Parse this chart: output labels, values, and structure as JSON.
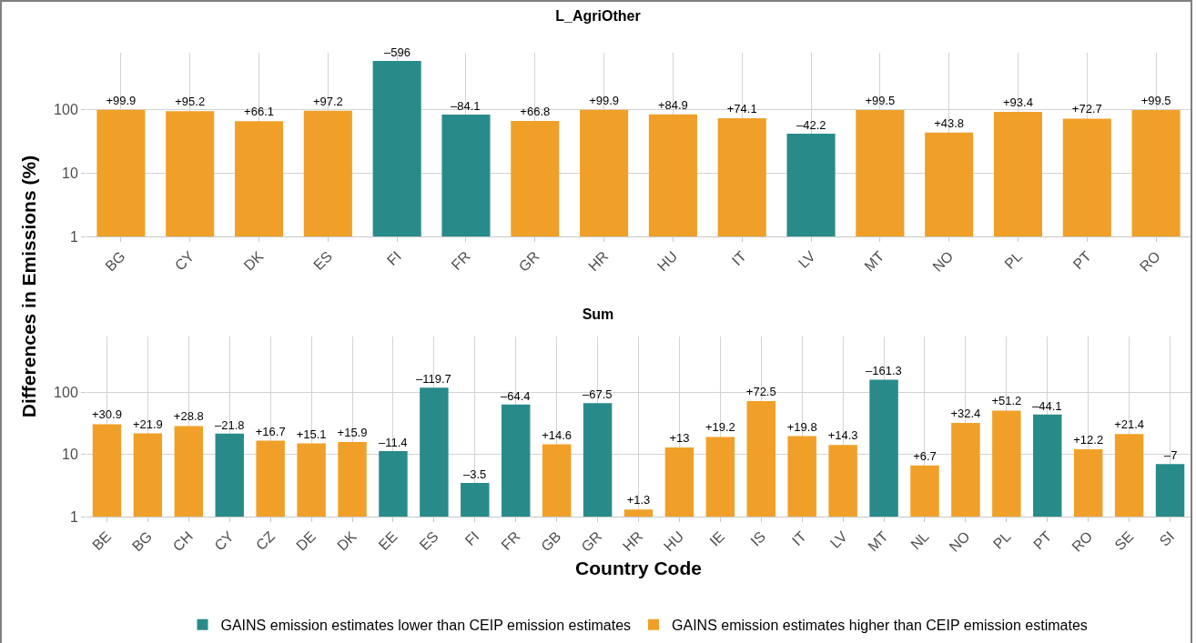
{
  "chart_data": [
    {
      "type": "bar",
      "title": "L_AgriOther",
      "ylabel": "Differences in Emissions (%)",
      "log": "y",
      "grid": true,
      "ylim": [
        1,
        800
      ],
      "yticks": [
        1,
        10,
        100
      ],
      "annotations": [
        {
          "text": "–596",
          "x": "FI",
          "y": 596
        },
        {
          "text": "–84.1",
          "x": "FR",
          "y": 84.1
        },
        {
          "text": "–42.2",
          "x": "LV",
          "y": 42.2
        }
      ],
      "categories": [
        "BG",
        "CY",
        "DK",
        "ES",
        "FI",
        "FR",
        "GR",
        "HR",
        "HU",
        "IT",
        "LV",
        "MT",
        "NO",
        "PL",
        "PT",
        "RO"
      ],
      "series": [
        {
          "color": "#288b8a",
          "values": [
            null,
            null,
            null,
            null,
            596,
            84.1,
            null,
            null,
            null,
            null,
            42.2,
            null,
            null,
            null,
            null,
            null
          ]
        },
        {
          "color": "#f0a028",
          "values": [
            99.9,
            95.2,
            66.1,
            97.2,
            null,
            null,
            66.8,
            99.9,
            84.9,
            74.1,
            null,
            99.5,
            43.8,
            93.4,
            72.7,
            99.5
          ],
          "value_labels": [
            "+99.9",
            "+95.2",
            "+66.1",
            "+97.2",
            null,
            null,
            "+66.8",
            "+99.9",
            "+84.9",
            "+74.1",
            null,
            "+99.5",
            "+43.8",
            "+93.4",
            "+72.7",
            "+99.5"
          ]
        }
      ]
    },
    {
      "type": "bar",
      "title": "Sum",
      "xlabel": "Country Code",
      "log": "y",
      "grid": true,
      "legend": "bottom",
      "ylim": [
        1,
        800
      ],
      "yticks": [
        1,
        10,
        100
      ],
      "annotations": [
        {
          "text": "–21.8",
          "x": "CY",
          "y": 21.8
        },
        {
          "text": "–11.4",
          "x": "EE",
          "y": 11.4
        },
        {
          "text": "–119.7",
          "x": "ES",
          "y": 119.7
        },
        {
          "text": "–3.5",
          "x": "FI",
          "y": 3.5
        },
        {
          "text": "–64.4",
          "x": "FR",
          "y": 64.4
        },
        {
          "text": "–67.5",
          "x": "GR",
          "y": 67.5
        },
        {
          "text": "–161.3",
          "x": "MT",
          "y": 161.3
        },
        {
          "text": "–44.1",
          "x": "PT",
          "y": 44.1
        },
        {
          "text": "–7",
          "x": "SI",
          "y": 7
        }
      ],
      "categories": [
        "BE",
        "BG",
        "CH",
        "CY",
        "CZ",
        "DE",
        "DK",
        "EE",
        "ES",
        "FI",
        "FR",
        "GB",
        "GR",
        "HR",
        "HU",
        "IE",
        "IS",
        "IT",
        "LV",
        "MT",
        "NL",
        "NO",
        "PL",
        "PT",
        "RO",
        "SE",
        "SI"
      ],
      "series": [
        {
          "name": "GAINS emission estimates lower than CEIP emission estimates",
          "color": "#288b8a",
          "values": [
            null,
            null,
            null,
            21.8,
            null,
            null,
            null,
            11.4,
            119.7,
            3.5,
            64.4,
            null,
            67.5,
            null,
            null,
            null,
            null,
            null,
            null,
            161.3,
            null,
            null,
            null,
            44.1,
            null,
            null,
            7
          ]
        },
        {
          "name": "GAINS emission estimates higher than CEIP emission estimates",
          "color": "#f0a028",
          "values": [
            30.9,
            21.9,
            28.8,
            null,
            16.7,
            15.1,
            15.9,
            null,
            null,
            null,
            null,
            14.6,
            null,
            1.3,
            13,
            19.2,
            72.5,
            19.8,
            14.3,
            null,
            6.7,
            32.4,
            51.2,
            null,
            12.2,
            21.4,
            null
          ],
          "value_labels": [
            "+30.9",
            "+21.9",
            "+28.8",
            null,
            "+16.7",
            "+15.1",
            "+15.9",
            null,
            null,
            null,
            null,
            "+14.6",
            null,
            "+1.3",
            "+13",
            "+19.2",
            "+72.5",
            "+19.8",
            "+14.3",
            null,
            "+6.7",
            "+32.4",
            "+51.2",
            null,
            "+12.2",
            "+21.4",
            null
          ]
        }
      ]
    }
  ]
}
